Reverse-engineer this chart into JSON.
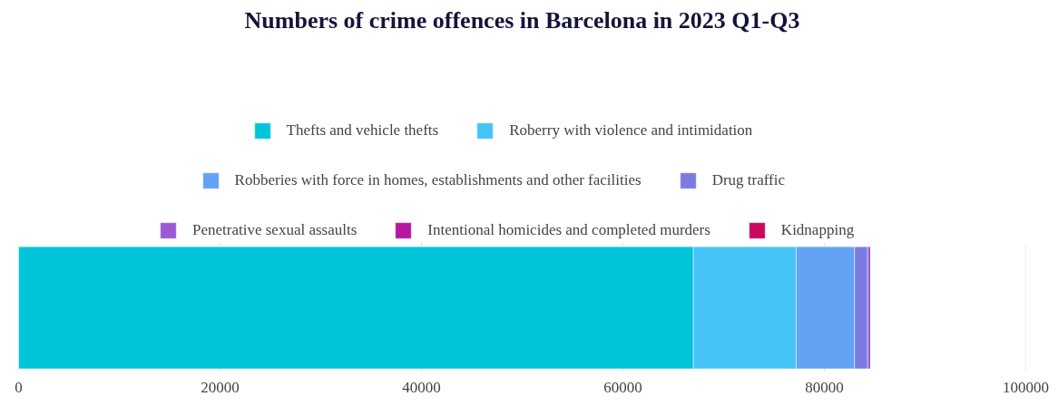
{
  "chart_data": {
    "type": "bar",
    "orientation": "horizontal",
    "stacked": true,
    "title": "Numbers of crime offences in Barcelona in 2023 Q1-Q3",
    "categories": [
      null
    ],
    "series": [
      {
        "name": "Thefts and vehicle thefts",
        "color": "#00c5d9",
        "values": [
          67000
        ]
      },
      {
        "name": "Roberry with violence and intimidation",
        "color": "#45c3f7",
        "values": [
          10200
        ]
      },
      {
        "name": "Robberies with force in homes, establishments and other facilities",
        "color": "#62a2f5",
        "values": [
          5800
        ]
      },
      {
        "name": "Drug traffic",
        "color": "#7a7ce0",
        "values": [
          1300
        ]
      },
      {
        "name": "Penetrative sexual assaults",
        "color": "#9b5ad2",
        "values": [
          300
        ]
      },
      {
        "name": "Intentional homicides and completed murders",
        "color": "#b5179e",
        "values": [
          null
        ]
      },
      {
        "name": "Kidnapping",
        "color": "#c9085f",
        "values": [
          null
        ]
      }
    ],
    "xlim": [
      0,
      100000
    ],
    "xticks": [
      0,
      20000,
      40000,
      60000,
      80000,
      100000
    ],
    "grid": "x",
    "legend": "top",
    "tick_labels": "x"
  }
}
